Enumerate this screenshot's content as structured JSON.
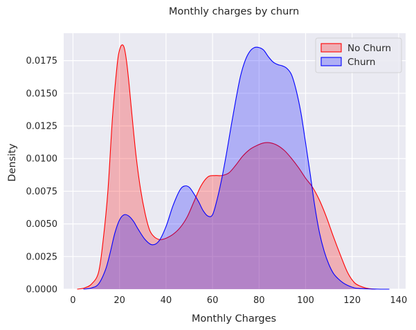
{
  "chart_data": {
    "type": "area",
    "title": "Monthly charges by churn",
    "xlabel": "Monthly Charges",
    "ylabel": "Density",
    "xlim": [
      -4,
      143
    ],
    "ylim": [
      0,
      0.0196
    ],
    "x_ticks": [
      "0",
      "20",
      "40",
      "60",
      "80",
      "100",
      "120",
      "140"
    ],
    "y_ticks": [
      "0.0000",
      "0.0025",
      "0.0050",
      "0.0075",
      "0.0100",
      "0.0125",
      "0.0150",
      "0.0175"
    ],
    "grid": true,
    "legend_position": "top-right",
    "series": [
      {
        "name": "No Churn",
        "line_color": "#ff0000",
        "fill_color": "#ff0000",
        "x": [
          1.8,
          5,
          8,
          11,
          13,
          15,
          17,
          19,
          20,
          21,
          22,
          23,
          24,
          25,
          27,
          29,
          31,
          33,
          35,
          37,
          38,
          40,
          43,
          46,
          49,
          52,
          55,
          58,
          61,
          64,
          67,
          70,
          73,
          76,
          79,
          82,
          85,
          88,
          91,
          94,
          97,
          100,
          103,
          106,
          109,
          112,
          115,
          118,
          121,
          124,
          127,
          130
        ],
        "values": [
          0.0,
          0.0001,
          0.0004,
          0.0013,
          0.0038,
          0.0075,
          0.0132,
          0.0172,
          0.0183,
          0.0187,
          0.0185,
          0.0175,
          0.0159,
          0.014,
          0.0104,
          0.0077,
          0.0058,
          0.0045,
          0.004,
          0.0038,
          0.0038,
          0.0039,
          0.0042,
          0.0047,
          0.0055,
          0.0067,
          0.0079,
          0.0086,
          0.0087,
          0.0087,
          0.0089,
          0.0095,
          0.0102,
          0.0107,
          0.011,
          0.0112,
          0.0112,
          0.011,
          0.0106,
          0.01,
          0.0093,
          0.0085,
          0.0078,
          0.0068,
          0.0055,
          0.004,
          0.0026,
          0.0013,
          0.0005,
          0.0002,
          5e-05,
          0.0
        ]
      },
      {
        "name": "Churn",
        "line_color": "#0000ff",
        "fill_color": "#0000ff",
        "x": [
          4.5,
          8,
          11,
          14,
          16,
          18,
          20,
          22,
          24,
          26,
          28,
          31,
          34,
          37,
          40,
          43,
          46,
          48,
          50,
          52,
          54,
          56,
          58,
          60,
          62,
          64,
          66,
          68,
          70,
          72,
          74,
          76,
          78,
          80,
          82,
          84,
          86,
          88,
          90,
          92,
          94,
          96,
          98,
          100,
          102,
          104,
          106,
          108,
          110,
          112,
          114,
          116,
          118,
          121,
          124,
          127,
          130,
          133,
          136
        ],
        "values": [
          0.0,
          0.0001,
          0.0004,
          0.0015,
          0.0028,
          0.0043,
          0.0053,
          0.0057,
          0.0056,
          0.0052,
          0.0046,
          0.0038,
          0.0034,
          0.0037,
          0.0048,
          0.0064,
          0.0076,
          0.0079,
          0.0078,
          0.0073,
          0.0067,
          0.006,
          0.0056,
          0.0057,
          0.0069,
          0.0085,
          0.0104,
          0.0125,
          0.0145,
          0.0163,
          0.0175,
          0.0182,
          0.0185,
          0.0185,
          0.0183,
          0.0178,
          0.0174,
          0.0172,
          0.0171,
          0.0169,
          0.0164,
          0.0152,
          0.0135,
          0.0112,
          0.0088,
          0.0063,
          0.0043,
          0.0029,
          0.0019,
          0.0012,
          0.0008,
          0.0005,
          0.0003,
          0.0001,
          5e-05,
          2e-05,
          1e-05,
          0.0,
          0.0
        ]
      }
    ]
  }
}
